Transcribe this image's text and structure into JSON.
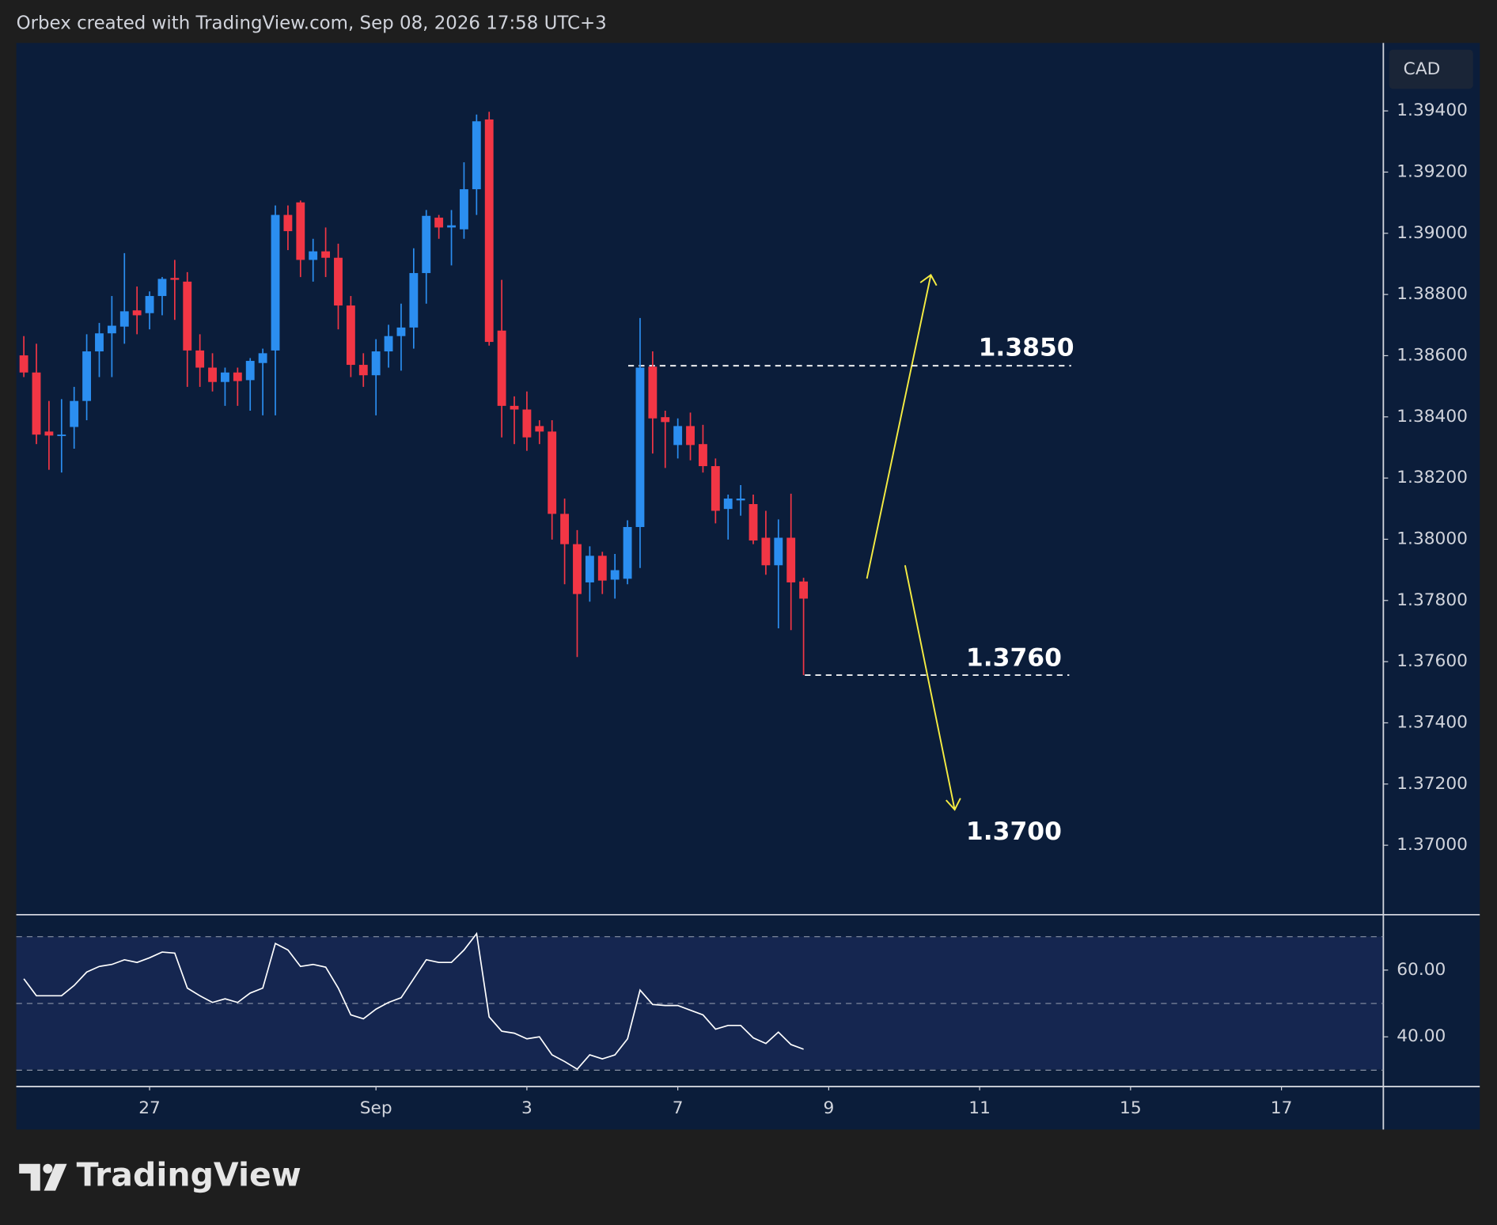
{
  "header": "Orbex created with TradingView.com, Sep 08, 2026 17:58 UTC+3",
  "brand": "TradingView",
  "chart_data": [
    {
      "type": "candlestick",
      "currency": "CAD",
      "open": [
        1.38601,
        1.38545,
        1.38352,
        1.38339,
        1.38367,
        1.38452,
        1.38614,
        1.38673,
        1.38695,
        1.38748,
        1.38739,
        1.38795,
        1.38854,
        1.38842,
        1.38617,
        1.38561,
        1.38514,
        1.38545,
        1.3852,
        1.38576,
        1.38617,
        1.3906,
        1.39101,
        1.38913,
        1.38941,
        1.3892,
        1.38764,
        1.3857,
        1.38536,
        1.38614,
        1.38664,
        1.38692,
        1.3887,
        1.39051,
        1.39019,
        1.39013,
        1.39144,
        1.39372,
        1.38682,
        1.38436,
        1.38424,
        1.3837,
        1.38352,
        1.38083,
        1.37984,
        1.37859,
        1.37946,
        1.37868,
        1.37871,
        1.3804,
        1.38564,
        1.38399,
        1.38308,
        1.3837,
        1.38311,
        1.38239,
        1.38099,
        1.38127,
        1.38115,
        1.38005,
        1.37915,
        1.38005,
        1.37862
      ],
      "high": [
        1.38664,
        1.38639,
        1.38452,
        1.38458,
        1.38498,
        1.3867,
        1.38707,
        1.38795,
        1.38935,
        1.38826,
        1.3881,
        1.38857,
        1.38913,
        1.38873,
        1.3867,
        1.38608,
        1.38561,
        1.38561,
        1.38592,
        1.38623,
        1.39091,
        1.39091,
        1.39107,
        1.38982,
        1.39019,
        1.38966,
        1.38795,
        1.38608,
        1.38654,
        1.38701,
        1.3877,
        1.38951,
        1.39076,
        1.3906,
        1.39076,
        1.39232,
        1.39388,
        1.39397,
        1.38848,
        1.38467,
        1.38483,
        1.38389,
        1.38389,
        1.38133,
        1.3803,
        1.37977,
        1.37959,
        1.37952,
        1.38062,
        1.38723,
        1.38614,
        1.3842,
        1.38395,
        1.38414,
        1.38374,
        1.38264,
        1.38146,
        1.38177,
        1.38146,
        1.38093,
        1.38065,
        1.38149,
        1.37874
      ],
      "low": [
        1.3853,
        1.38311,
        1.38227,
        1.38218,
        1.38296,
        1.38389,
        1.3853,
        1.3853,
        1.38639,
        1.3867,
        1.38686,
        1.38732,
        1.38717,
        1.38498,
        1.38498,
        1.38483,
        1.38436,
        1.38436,
        1.3842,
        1.38405,
        1.38405,
        1.38945,
        1.38857,
        1.38842,
        1.38857,
        1.38686,
        1.3853,
        1.38498,
        1.38405,
        1.38561,
        1.38551,
        1.38623,
        1.3877,
        1.38982,
        1.38895,
        1.38982,
        1.3906,
        1.38633,
        1.38333,
        1.38311,
        1.38289,
        1.38311,
        1.37999,
        1.37853,
        1.37615,
        1.37796,
        1.37821,
        1.37806,
        1.37853,
        1.37906,
        1.3828,
        1.38233,
        1.38264,
        1.38258,
        1.38218,
        1.38052,
        1.37999,
        1.38077,
        1.37984,
        1.37884,
        1.37709,
        1.37703,
        1.37556
      ],
      "close": [
        1.38545,
        1.38342,
        1.38339,
        1.38342,
        1.38452,
        1.38614,
        1.38673,
        1.38698,
        1.38745,
        1.38732,
        1.38795,
        1.38851,
        1.38848,
        1.38617,
        1.38561,
        1.38514,
        1.38545,
        1.38517,
        1.38583,
        1.38608,
        1.3906,
        1.39007,
        1.38913,
        1.38941,
        1.3892,
        1.38764,
        1.3857,
        1.38536,
        1.38614,
        1.38664,
        1.38692,
        1.3887,
        1.39057,
        1.39019,
        1.39026,
        1.39144,
        1.39366,
        1.38645,
        1.38436,
        1.38424,
        1.38333,
        1.38352,
        1.38083,
        1.37984,
        1.37821,
        1.37946,
        1.37865,
        1.37899,
        1.3804,
        1.38561,
        1.38395,
        1.38383,
        1.3837,
        1.38308,
        1.38239,
        1.38093,
        1.38133,
        1.38133,
        1.37996,
        1.37915,
        1.38005,
        1.37859,
        1.37806
      ],
      "up_color": "#2b8ef0",
      "down_color": "#f23645",
      "xlim": [
        -0.6,
        108.1
      ],
      "ylim": [
        1.36773,
        1.39622
      ],
      "yticks": [
        {
          "value": 1.394,
          "label": "1.39400"
        },
        {
          "value": 1.392,
          "label": "1.39200"
        },
        {
          "value": 1.39,
          "label": "1.39000"
        },
        {
          "value": 1.388,
          "label": "1.38800"
        },
        {
          "value": 1.386,
          "label": "1.38600"
        },
        {
          "value": 1.384,
          "label": "1.38400"
        },
        {
          "value": 1.382,
          "label": "1.38200"
        },
        {
          "value": 1.38,
          "label": "1.38000"
        },
        {
          "value": 1.378,
          "label": "1.37800"
        },
        {
          "value": 1.376,
          "label": "1.37600"
        },
        {
          "value": 1.374,
          "label": "1.37400"
        },
        {
          "value": 1.372,
          "label": "1.37200"
        },
        {
          "value": 1.37,
          "label": "1.37000"
        }
      ],
      "levels": [
        1.38567,
        1.37556
      ],
      "annotations": [
        "1.3850",
        "1.3760",
        "1.3700"
      ]
    },
    {
      "type": "line",
      "color": "#ffffff",
      "values": [
        57.4,
        52.3,
        52.3,
        52.3,
        55.4,
        59.4,
        61.1,
        61.7,
        63.1,
        62.3,
        63.7,
        65.4,
        65.1,
        54.6,
        52.3,
        50.3,
        51.4,
        50.3,
        53.1,
        54.6,
        68.0,
        66.0,
        61.1,
        61.7,
        60.9,
        54.6,
        46.6,
        45.4,
        48.3,
        50.3,
        51.7,
        57.4,
        63.1,
        62.3,
        62.3,
        66.0,
        70.9,
        46.0,
        41.7,
        41.1,
        39.4,
        40.0,
        34.6,
        32.6,
        30.3,
        34.6,
        33.4,
        34.6,
        39.4,
        54.0,
        49.7,
        49.4,
        49.4,
        48.0,
        46.6,
        42.3,
        43.4,
        43.4,
        39.7,
        38.0,
        41.4,
        37.7,
        36.3
      ],
      "xlim": [
        -0.6,
        108.1
      ],
      "ylim": [
        25.1,
        76.6
      ],
      "yticks": [
        {
          "value": 60,
          "label": "60.00"
        },
        {
          "value": 40,
          "label": "40.00"
        }
      ],
      "bands": [
        30,
        50,
        70
      ],
      "xticks": [
        {
          "value": 10,
          "label": "27"
        },
        {
          "value": 28,
          "label": "Sep"
        },
        {
          "value": 40,
          "label": "3"
        },
        {
          "value": 52,
          "label": "7"
        },
        {
          "value": 64,
          "label": "9"
        },
        {
          "value": 76,
          "label": "11"
        },
        {
          "value": 88,
          "label": "15"
        },
        {
          "value": 100,
          "label": "17"
        }
      ]
    }
  ]
}
